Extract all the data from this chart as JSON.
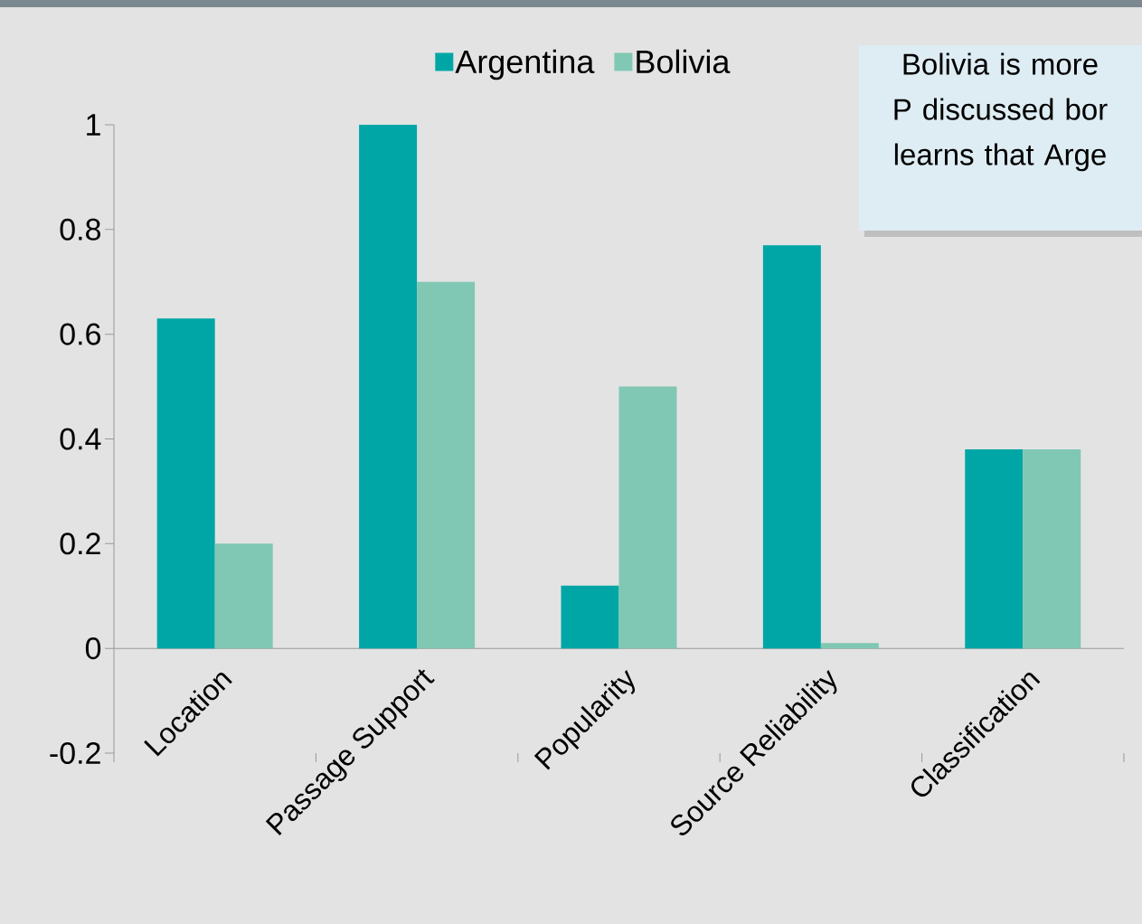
{
  "chart_data": {
    "type": "bar",
    "categories": [
      "Location",
      "Passage Support",
      "Popularity",
      "Source Reliability",
      "Classification"
    ],
    "series": [
      {
        "name": "Argentina",
        "color": "#00a6a6",
        "values": [
          0.63,
          1.0,
          0.12,
          0.77,
          0.38
        ]
      },
      {
        "name": "Bolivia",
        "color": "#80c8b4",
        "values": [
          0.2,
          0.7,
          0.5,
          0.01,
          0.38
        ]
      }
    ],
    "ylim": [
      -0.2,
      1
    ],
    "yticks": [
      -0.2,
      0,
      0.2,
      0.4,
      0.6,
      0.8,
      1
    ],
    "legend": "top",
    "annotations": [
      "Bolivia is more P discussed bor learns that Arge"
    ]
  }
}
